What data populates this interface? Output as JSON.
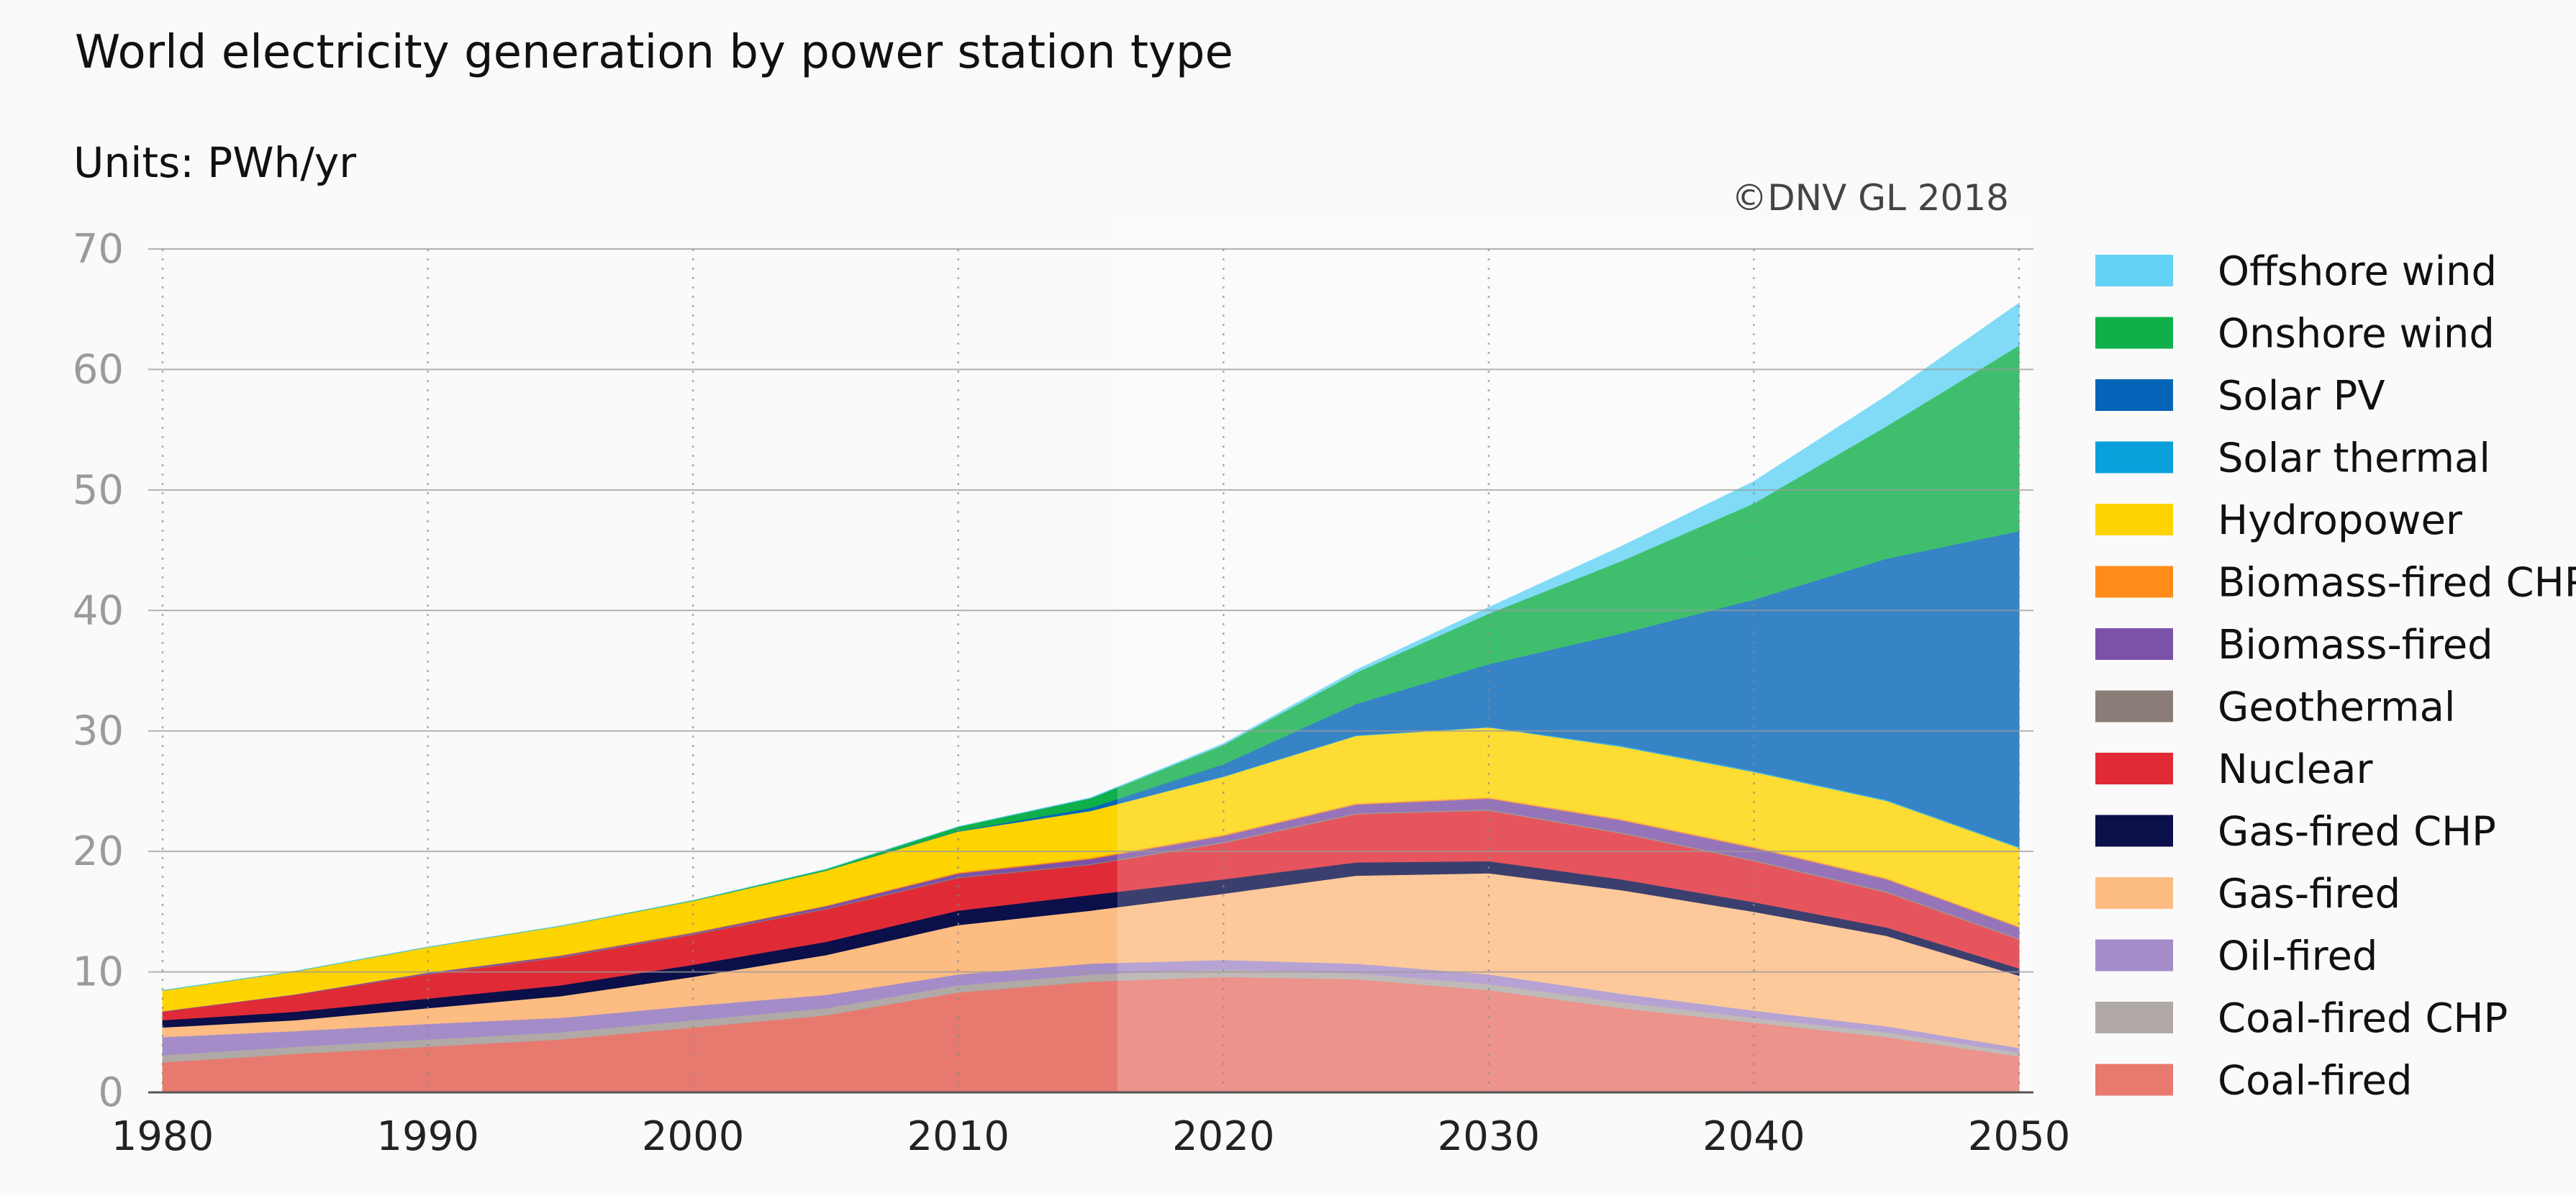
{
  "chart_data": {
    "type": "area",
    "stacked": true,
    "title": "World electricity generation by power station type",
    "units_label": "Units:",
    "units_value": "PWh/yr",
    "copyright": "©DNV GL 2018",
    "xlabel": "",
    "ylabel": "",
    "xlim": [
      1980,
      2050
    ],
    "ylim": [
      0,
      70
    ],
    "x_ticks": [
      1980,
      1990,
      2000,
      2010,
      2020,
      2030,
      2040,
      2050
    ],
    "y_ticks": [
      0,
      10,
      20,
      30,
      40,
      50,
      60,
      70
    ],
    "forecast_start_year": 2016,
    "legend_position": "right",
    "x": [
      1980,
      1985,
      1990,
      1995,
      2000,
      2005,
      2010,
      2015,
      2020,
      2025,
      2030,
      2035,
      2040,
      2045,
      2050
    ],
    "series": [
      {
        "name": "Coal-fired",
        "color": "#e8796e",
        "values": [
          2.5,
          3.2,
          3.8,
          4.4,
          5.4,
          6.4,
          8.3,
          9.2,
          9.6,
          9.4,
          8.5,
          7.0,
          5.8,
          4.6,
          3.0
        ]
      },
      {
        "name": "Coal-fired CHP",
        "color": "#b0a9a6",
        "values": [
          0.6,
          0.6,
          0.6,
          0.6,
          0.6,
          0.6,
          0.6,
          0.6,
          0.6,
          0.5,
          0.5,
          0.5,
          0.4,
          0.4,
          0.3
        ]
      },
      {
        "name": "Oil-fired",
        "color": "#a48cc9",
        "values": [
          1.5,
          1.3,
          1.3,
          1.2,
          1.2,
          1.1,
          0.9,
          0.9,
          0.8,
          0.8,
          0.8,
          0.7,
          0.6,
          0.5,
          0.4
        ]
      },
      {
        "name": "Gas-fired",
        "color": "#fdbc82",
        "values": [
          0.8,
          0.9,
          1.3,
          1.8,
          2.4,
          3.3,
          4.1,
          4.4,
          5.5,
          7.3,
          8.4,
          8.6,
          8.2,
          7.5,
          6.0
        ]
      },
      {
        "name": "Gas-fired CHP",
        "color": "#0b0f4a",
        "values": [
          0.6,
          0.7,
          0.8,
          0.9,
          1.0,
          1.1,
          1.2,
          1.3,
          1.2,
          1.1,
          1.0,
          0.9,
          0.8,
          0.7,
          0.6
        ]
      },
      {
        "name": "Nuclear",
        "color": "#e02b36",
        "values": [
          0.7,
          1.4,
          2.0,
          2.3,
          2.5,
          2.7,
          2.7,
          2.5,
          3.0,
          4.0,
          4.2,
          3.8,
          3.4,
          2.9,
          2.4
        ]
      },
      {
        "name": "Geothermal",
        "color": "#8a7d77",
        "values": [
          0.0,
          0.0,
          0.05,
          0.05,
          0.05,
          0.06,
          0.07,
          0.08,
          0.1,
          0.1,
          0.1,
          0.1,
          0.1,
          0.1,
          0.1
        ]
      },
      {
        "name": "Biomass-fired",
        "color": "#7b52a8",
        "values": [
          0.05,
          0.05,
          0.1,
          0.1,
          0.1,
          0.2,
          0.3,
          0.4,
          0.5,
          0.7,
          0.9,
          1.0,
          1.0,
          1.0,
          0.9
        ]
      },
      {
        "name": "Biomass-fired CHP",
        "color": "#ff8c1a",
        "values": [
          0.0,
          0.0,
          0.0,
          0.05,
          0.05,
          0.05,
          0.1,
          0.1,
          0.1,
          0.1,
          0.1,
          0.1,
          0.1,
          0.1,
          0.1
        ]
      },
      {
        "name": "Hydropower",
        "color": "#fdd400",
        "values": [
          1.7,
          1.9,
          2.1,
          2.4,
          2.6,
          2.9,
          3.4,
          3.9,
          4.8,
          5.6,
          5.8,
          6.0,
          6.2,
          6.4,
          6.5
        ]
      },
      {
        "name": "Solar thermal",
        "color": "#0aa0dc",
        "values": [
          0.0,
          0.0,
          0.0,
          0.0,
          0.0,
          0.0,
          0.0,
          0.0,
          0.05,
          0.05,
          0.05,
          0.1,
          0.1,
          0.1,
          0.1
        ]
      },
      {
        "name": "Solar PV",
        "color": "#0465b8",
        "values": [
          0.0,
          0.0,
          0.0,
          0.0,
          0.0,
          0.0,
          0.03,
          0.25,
          1.0,
          2.6,
          5.2,
          9.3,
          14.2,
          20.0,
          26.2
        ]
      },
      {
        "name": "Onshore wind",
        "color": "#0fb04a",
        "values": [
          0.0,
          0.0,
          0.0,
          0.0,
          0.03,
          0.1,
          0.35,
          0.8,
          1.6,
          2.6,
          4.2,
          6.0,
          8.0,
          11.0,
          15.4
        ]
      },
      {
        "name": "Offshore wind",
        "color": "#62d3f5",
        "values": [
          0.0,
          0.0,
          0.0,
          0.0,
          0.0,
          0.0,
          0.0,
          0.02,
          0.1,
          0.2,
          0.5,
          1.2,
          1.8,
          2.5,
          3.5
        ]
      }
    ],
    "legend_order": [
      "Offshore wind",
      "Onshore wind",
      "Solar PV",
      "Solar thermal",
      "Hydropower",
      "Biomass-fired CHP",
      "Biomass-fired",
      "Geothermal",
      "Nuclear",
      "Gas-fired CHP",
      "Gas-fired",
      "Oil-fired",
      "Coal-fired CHP",
      "Coal-fired"
    ]
  }
}
